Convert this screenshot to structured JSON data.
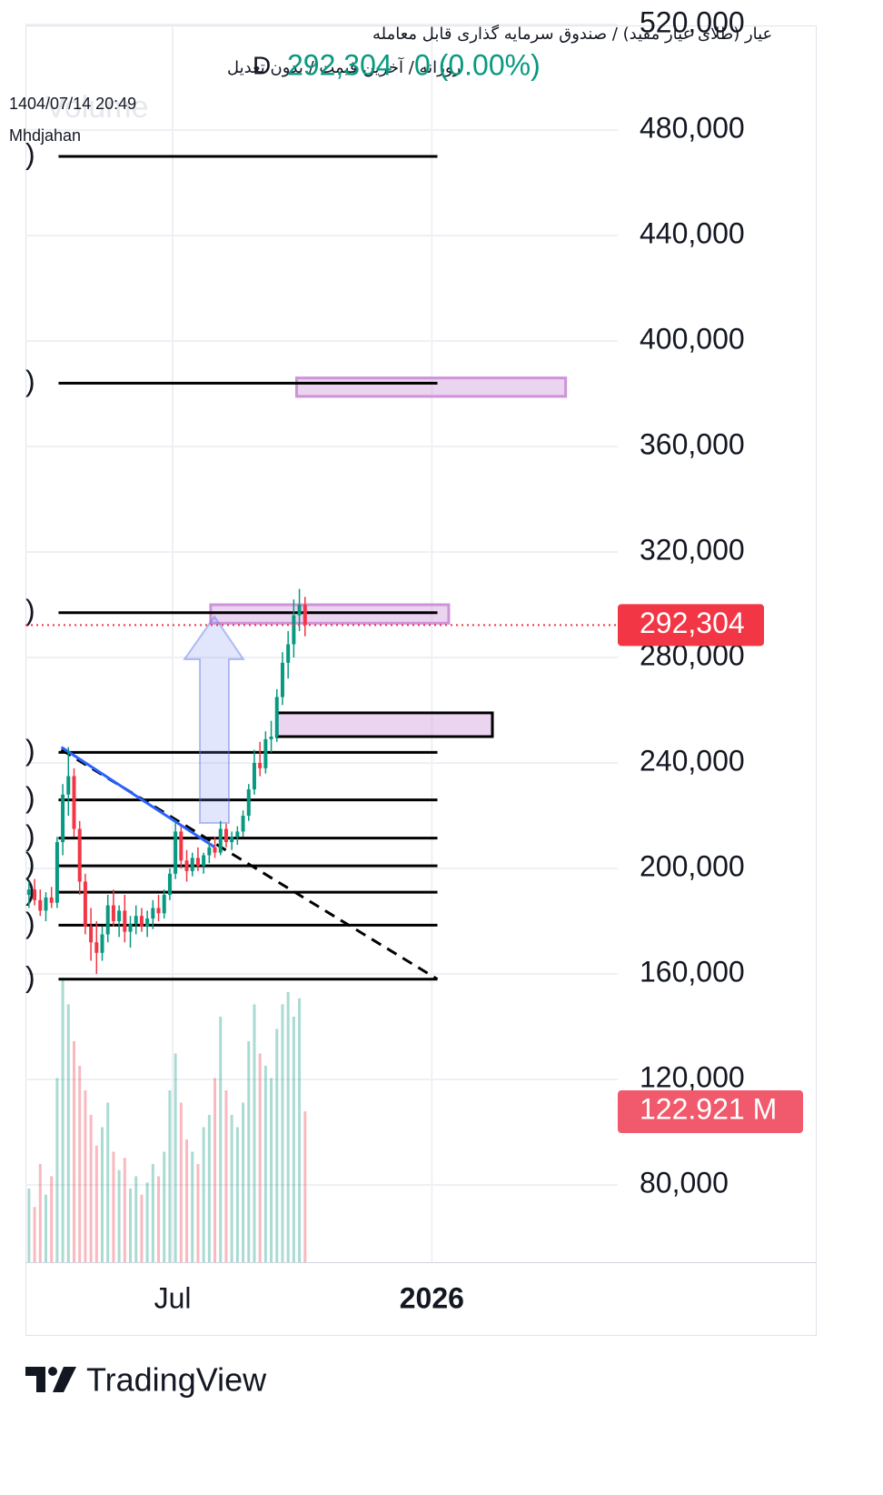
{
  "chart_data": {
    "type": "candlestick",
    "title": "عیار (طلای عیار مفید) / صندوق سرمایه گذاری قابل معامله",
    "subtitle": "روزانه / آخرین قیمت / بدون تعدیل",
    "interval": "D",
    "last_price": {
      "value": 292304,
      "label": "292,304"
    },
    "change": "0 (0.00%)",
    "timestamp": "1404/07/14 20:49",
    "author": "Mhdjahan",
    "volume_title": "Volume",
    "x": [
      -102,
      -98,
      -94,
      -90,
      -86,
      -82,
      -78,
      -74,
      -70,
      -66,
      -62,
      -58,
      -54,
      -50,
      -46,
      -42,
      -38,
      -34,
      -30,
      -26,
      -22,
      -18,
      -14,
      -10,
      -6,
      -2,
      2,
      6,
      10,
      14,
      18,
      22,
      26,
      30,
      34,
      38,
      42,
      46,
      50,
      54,
      58,
      62,
      66,
      70,
      74,
      78,
      82,
      86,
      90,
      94
    ],
    "open": [
      190000,
      192000,
      188000,
      184000,
      189000,
      187000,
      210000,
      228000,
      235000,
      215000,
      195000,
      178000,
      172000,
      168000,
      175000,
      186000,
      180000,
      184000,
      176000,
      179000,
      182000,
      178000,
      181000,
      185000,
      183000,
      190000,
      198000,
      214000,
      203000,
      199000,
      204000,
      201000,
      205000,
      208000,
      206000,
      215000,
      210000,
      212000,
      214000,
      220000,
      230000,
      240000,
      238000,
      249000,
      250000,
      265000,
      278000,
      285000,
      296000,
      300000
    ],
    "high": [
      195000,
      196000,
      192000,
      191000,
      193000,
      212000,
      232000,
      246000,
      238000,
      218000,
      198000,
      185000,
      180000,
      178000,
      190000,
      192000,
      186000,
      190000,
      182000,
      186000,
      185000,
      184000,
      188000,
      190000,
      192000,
      200000,
      218000,
      216000,
      207000,
      206000,
      208000,
      206000,
      210000,
      212000,
      218000,
      217000,
      214000,
      216000,
      222000,
      232000,
      245000,
      248000,
      252000,
      256000,
      268000,
      282000,
      290000,
      302000,
      306000,
      303000
    ],
    "low": [
      185000,
      186000,
      182000,
      180000,
      185000,
      185000,
      205000,
      220000,
      212000,
      190000,
      175000,
      165000,
      160000,
      165000,
      172000,
      178000,
      174000,
      172000,
      170000,
      175000,
      176000,
      174000,
      177000,
      180000,
      181000,
      188000,
      196000,
      200000,
      195000,
      197000,
      199000,
      198000,
      202000,
      204000,
      205000,
      208000,
      207000,
      209000,
      212000,
      218000,
      228000,
      235000,
      236000,
      244000,
      248000,
      262000,
      272000,
      280000,
      290000,
      288000
    ],
    "close": [
      192000,
      188000,
      184000,
      189000,
      187000,
      210000,
      228000,
      235000,
      215000,
      195000,
      178000,
      172000,
      168000,
      175000,
      186000,
      180000,
      184000,
      176000,
      179000,
      182000,
      178000,
      181000,
      185000,
      183000,
      190000,
      198000,
      214000,
      203000,
      199000,
      204000,
      201000,
      205000,
      208000,
      206000,
      215000,
      210000,
      212000,
      214000,
      220000,
      230000,
      240000,
      238000,
      249000,
      250000,
      265000,
      278000,
      285000,
      296000,
      300000,
      292304
    ],
    "volume": [
      60000000,
      45000000,
      80000000,
      55000000,
      70000000,
      150000000,
      230000000,
      210000000,
      180000000,
      160000000,
      140000000,
      120000000,
      95000000,
      110000000,
      130000000,
      90000000,
      75000000,
      85000000,
      60000000,
      70000000,
      55000000,
      65000000,
      80000000,
      70000000,
      90000000,
      140000000,
      170000000,
      130000000,
      100000000,
      90000000,
      80000000,
      110000000,
      120000000,
      150000000,
      200000000,
      140000000,
      120000000,
      110000000,
      130000000,
      180000000,
      210000000,
      170000000,
      160000000,
      150000000,
      190000000,
      210000000,
      220000000,
      200000000,
      215000000,
      122921000
    ],
    "last_volume": {
      "value": 122921000,
      "label": "122.921 M"
    },
    "volume_ylim": [
      0,
      260000000
    ],
    "up_color": "#089981",
    "down_color": "#f23645",
    "ylim": [
      50690,
      518970
    ],
    "yticks": [
      {
        "value": 80000,
        "label": "80,000"
      },
      {
        "value": 120000,
        "label": "120,000"
      },
      {
        "value": 160000,
        "label": "160,000"
      },
      {
        "value": 200000,
        "label": "200,000"
      },
      {
        "value": 240000,
        "label": "240,000"
      },
      {
        "value": 280000,
        "label": "280,000"
      },
      {
        "value": 320000,
        "label": "320,000"
      },
      {
        "value": 360000,
        "label": "360,000"
      },
      {
        "value": 400000,
        "label": "400,000"
      },
      {
        "value": 440000,
        "label": "440,000"
      },
      {
        "value": 480000,
        "label": "480,000"
      },
      {
        "value": 520000,
        "label": "520,000"
      }
    ],
    "xlim": [
      -104.5,
      316
    ],
    "xticks": [
      {
        "value": 0,
        "label": "Jul"
      },
      {
        "value": 184,
        "label": "2026"
      }
    ],
    "grid": true,
    "levels": [
      {
        "value": 470000,
        "label": ")"
      },
      {
        "value": 384000,
        "label": ")"
      },
      {
        "value": 297000,
        "label": ")"
      },
      {
        "value": 244000,
        "label": ")"
      },
      {
        "value": 226000,
        "label": ")"
      },
      {
        "value": 211500,
        "label": ")"
      },
      {
        "value": 201000,
        "label": ")"
      },
      {
        "value": 191000,
        "label": ")"
      },
      {
        "value": 178500,
        "label": ")"
      },
      {
        "value": 158000,
        "label": ")"
      }
    ],
    "levels_x": [
      -81,
      188
    ],
    "zones": [
      {
        "x": [
          88,
          279
        ],
        "y": [
          379000,
          386000
        ],
        "border": "#ce93d8"
      },
      {
        "x": [
          27,
          196
        ],
        "y": [
          293000,
          300000
        ],
        "border": "#ce93d8"
      },
      {
        "x": [
          74,
          227
        ],
        "y": [
          250000,
          259000
        ],
        "border": "#000000"
      }
    ],
    "trendlines": [
      {
        "x": [
          -79,
          188
        ],
        "y": [
          245000,
          158000
        ],
        "color": "#000000",
        "dashed": true
      },
      {
        "x": [
          -79,
          30
        ],
        "y": [
          246000,
          208000
        ],
        "color": "#2962ff",
        "dashed": false
      }
    ]
  },
  "branding": "TradingView"
}
